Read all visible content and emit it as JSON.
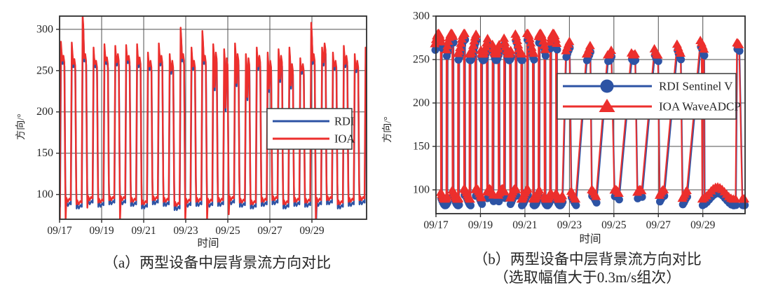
{
  "colors": {
    "rdi_blue": "#2D53A4",
    "ioa_red": "#EC2F2D",
    "grid": "#4F4F4F",
    "frame": "#2E2E2E",
    "text": "#262626"
  },
  "chart_data": [
    {
      "type": "line",
      "caption": "（a）两型设备中层背景流方向对比",
      "xlabel": "时间",
      "ylabel": "方向/°",
      "x_start": "09/17",
      "xticks": [
        "09/17",
        "09/19",
        "09/21",
        "09/23",
        "09/25",
        "09/27",
        "09/29"
      ],
      "xtick_days": [
        0,
        2,
        4,
        6,
        8,
        10,
        12
      ],
      "yticks": [
        100,
        150,
        200,
        250,
        300
      ],
      "ylim": [
        70,
        316
      ],
      "xlim_days": [
        0,
        14.6
      ],
      "grid": true,
      "legend_position": "middle-right",
      "legend": [
        {
          "name": "RDI",
          "color": "#2D53A4"
        },
        {
          "name": "IOA",
          "color": "#EC2F2D"
        }
      ],
      "period_days": 0.5175,
      "phase_shift_days": 0.04,
      "rdi_offsets": {
        "p1": -6,
        "m": -4,
        "p2": -5,
        "lo": -5,
        "t": 0.006
      },
      "cycles": [
        {
          "p1": 285,
          "m": 262,
          "p2": 268,
          "lo": 93,
          "ls": 68
        },
        {
          "p1": 284,
          "m": 258,
          "p2": 264,
          "lo": 90
        },
        {
          "p1": 317,
          "m": 265,
          "p2": 270,
          "lo": 95,
          "ls": 84
        },
        {
          "p1": 278,
          "m": 258,
          "p2": 262,
          "lo": 92
        },
        {
          "p1": 282,
          "m": 262,
          "p2": 266,
          "lo": 95
        },
        {
          "p1": 280,
          "m": 260,
          "p2": 270,
          "lo": 95,
          "ls": 68
        },
        {
          "p1": 281,
          "m": 263,
          "p2": 268,
          "lo": 93
        },
        {
          "p1": 282,
          "m": 258,
          "p2": 266,
          "lo": 90
        },
        {
          "p1": 272,
          "m": 255,
          "p2": 262,
          "lo": 95
        },
        {
          "p1": 283,
          "m": 260,
          "p2": 268,
          "lo": 93
        },
        {
          "p1": 270,
          "m": 250,
          "p2": 262,
          "lo": 88
        },
        {
          "p1": 302,
          "m": 265,
          "p2": 270,
          "lo": 92,
          "ls": 68
        },
        {
          "p1": 278,
          "m": 255,
          "p2": 262,
          "lo": 93
        },
        {
          "p1": 298,
          "m": 262,
          "p2": 268,
          "lo": 92,
          "ls": 68
        },
        {
          "p1": 282,
          "m": 230,
          "p2": 272,
          "lo": 93
        },
        {
          "p1": 276,
          "m": 205,
          "p2": 265,
          "lo": 95,
          "ls": 76
        },
        {
          "p1": 283,
          "m": 235,
          "p2": 270,
          "lo": 92
        },
        {
          "p1": 270,
          "m": 218,
          "p2": 265,
          "lo": 90
        },
        {
          "p1": 278,
          "m": 255,
          "p2": 268,
          "lo": 93
        },
        {
          "p1": 272,
          "m": 228,
          "p2": 262,
          "lo": 95
        },
        {
          "p1": 276,
          "m": 240,
          "p2": 268,
          "lo": 90
        },
        {
          "p1": 278,
          "m": 232,
          "p2": 258,
          "lo": 93
        },
        {
          "p1": 265,
          "m": 250,
          "p2": 258,
          "lo": 92
        },
        {
          "p1": 308,
          "m": 262,
          "p2": 270,
          "lo": 93,
          "ls": 68,
          "bls": 60
        },
        {
          "p1": 278,
          "m": 260,
          "p2": 283,
          "lo": 95
        },
        {
          "p1": 272,
          "m": 255,
          "p2": 262,
          "lo": 90
        },
        {
          "p1": 280,
          "m": 258,
          "p2": 268,
          "lo": 93
        },
        {
          "p1": 270,
          "m": 252,
          "p2": 262,
          "lo": 95
        },
        {
          "p1": 278,
          "m": 256,
          "p2": 266,
          "lo": 93
        }
      ]
    },
    {
      "type": "scatter-line",
      "caption_line1": "（b）两型设备中层背景流方向对比",
      "caption_line2": "（选取幅值大于0.3m/s组次）",
      "xlabel": "时间",
      "ylabel": "方向/°",
      "x_start": "09/17",
      "xticks": [
        "09/17",
        "09/19",
        "09/21",
        "09/23",
        "09/25",
        "09/27",
        "09/29"
      ],
      "xtick_days": [
        0,
        2,
        4,
        6,
        8,
        10,
        12
      ],
      "yticks": [
        100,
        150,
        200,
        250,
        300
      ],
      "ylim": [
        72.6,
        300
      ],
      "xlim_days": [
        0,
        13.9
      ],
      "grid": true,
      "legend_position": "upper-middle",
      "legend": [
        {
          "name": "RDI Sentinel V",
          "marker": "circle",
          "color": "#2D53A4"
        },
        {
          "name": "IOA WaveADCP",
          "marker": "triangle",
          "color": "#EC2F2D"
        }
      ],
      "rdi_offset_deg": -7,
      "rdi_t_offset_days": 0.02,
      "clusters": [
        {
          "d": 0.1,
          "lv": "h",
          "y": 268,
          "n": 8,
          "sp": 0.3,
          "vr": 12
        },
        {
          "d": 0.36,
          "lv": "l",
          "y": 95,
          "n": 8,
          "sp": 0.28,
          "vr": 6
        },
        {
          "d": 0.62,
          "lv": "h",
          "y": 268,
          "n": 8,
          "sp": 0.3,
          "vr": 12
        },
        {
          "d": 0.88,
          "lv": "l",
          "y": 95,
          "n": 8,
          "sp": 0.28,
          "vr": 6
        },
        {
          "d": 1.14,
          "lv": "h",
          "y": 268,
          "n": 8,
          "sp": 0.3,
          "vr": 12
        },
        {
          "d": 1.4,
          "lv": "l",
          "y": 95,
          "n": 8,
          "sp": 0.28,
          "vr": 6
        },
        {
          "d": 1.65,
          "lv": "h",
          "y": 268,
          "n": 8,
          "sp": 0.3,
          "vr": 12
        },
        {
          "d": 1.91,
          "lv": "l",
          "y": 95,
          "n": 8,
          "sp": 0.28,
          "vr": 6
        },
        {
          "d": 2.17,
          "lv": "h",
          "y": 268,
          "n": 8,
          "sp": 0.3,
          "vr": 12
        },
        {
          "d": 2.43,
          "lv": "l",
          "y": 95,
          "n": 8,
          "sp": 0.28,
          "vr": 6
        },
        {
          "d": 2.69,
          "lv": "h",
          "y": 268,
          "n": 8,
          "sp": 0.3,
          "vr": 12
        },
        {
          "d": 2.95,
          "lv": "l",
          "y": 95,
          "n": 8,
          "sp": 0.28,
          "vr": 6
        },
        {
          "d": 3.21,
          "lv": "h",
          "y": 268,
          "n": 8,
          "sp": 0.3,
          "vr": 12
        },
        {
          "d": 3.47,
          "lv": "l",
          "y": 95,
          "n": 8,
          "sp": 0.28,
          "vr": 6
        },
        {
          "d": 3.72,
          "lv": "h",
          "y": 268,
          "n": 8,
          "sp": 0.3,
          "vr": 12
        },
        {
          "d": 3.98,
          "lv": "l",
          "y": 95,
          "n": 8,
          "sp": 0.28,
          "vr": 6
        },
        {
          "d": 4.24,
          "lv": "h",
          "y": 268,
          "n": 8,
          "sp": 0.3,
          "vr": 12
        },
        {
          "d": 4.5,
          "lv": "l",
          "y": 95,
          "n": 8,
          "sp": 0.28,
          "vr": 6
        },
        {
          "d": 4.76,
          "lv": "h",
          "y": 268,
          "n": 8,
          "sp": 0.3,
          "vr": 12
        },
        {
          "d": 5.02,
          "lv": "l",
          "y": 95,
          "n": 8,
          "sp": 0.28,
          "vr": 6
        },
        {
          "d": 5.28,
          "lv": "h",
          "y": 268,
          "n": 8,
          "sp": 0.3,
          "vr": 12
        },
        {
          "d": 5.54,
          "lv": "l",
          "y": 95,
          "n": 8,
          "sp": 0.28,
          "vr": 6
        },
        {
          "d": 5.92,
          "lv": "h",
          "y": 264,
          "n": 4,
          "sp": 0.16,
          "vr": 9
        },
        {
          "d": 6.18,
          "lv": "l",
          "y": 94,
          "n": 5,
          "sp": 0.2,
          "vr": 6
        },
        {
          "d": 6.85,
          "lv": "h",
          "y": 264,
          "n": 4,
          "sp": 0.16,
          "vr": 9
        },
        {
          "d": 7.1,
          "lv": "l",
          "y": 94,
          "n": 5,
          "sp": 0.2,
          "vr": 6
        },
        {
          "d": 7.8,
          "lv": "h",
          "y": 264,
          "n": 4,
          "sp": 0.16,
          "vr": 9
        },
        {
          "d": 8.12,
          "lv": "l",
          "y": 94,
          "n": 5,
          "sp": 0.2,
          "vr": 6
        },
        {
          "d": 8.87,
          "lv": "h",
          "y": 264,
          "n": 4,
          "sp": 0.16,
          "vr": 9
        },
        {
          "d": 9.15,
          "lv": "l",
          "y": 94,
          "n": 5,
          "sp": 0.2,
          "vr": 6
        },
        {
          "d": 9.9,
          "lv": "h",
          "y": 264,
          "n": 4,
          "sp": 0.16,
          "vr": 9
        },
        {
          "d": 10.15,
          "lv": "l",
          "y": 94,
          "n": 5,
          "sp": 0.2,
          "vr": 6
        },
        {
          "d": 10.92,
          "lv": "h",
          "y": 264,
          "n": 4,
          "sp": 0.16,
          "vr": 9
        },
        {
          "d": 11.18,
          "lv": "l",
          "y": 94,
          "n": 5,
          "sp": 0.2,
          "vr": 6
        },
        {
          "d": 11.97,
          "lv": "h",
          "y": 264,
          "n": 4,
          "sp": 0.16,
          "vr": 9
        },
        {
          "d": 12.72,
          "lv": "l",
          "y": 96,
          "n": 16,
          "sp": 1.5,
          "vr": 7
        },
        {
          "d": 13.58,
          "lv": "h",
          "y": 262,
          "n": 3,
          "sp": 0.1,
          "vr": 7
        },
        {
          "d": 13.82,
          "lv": "l",
          "y": 93,
          "n": 3,
          "sp": 0.1,
          "vr": 4
        }
      ]
    }
  ]
}
